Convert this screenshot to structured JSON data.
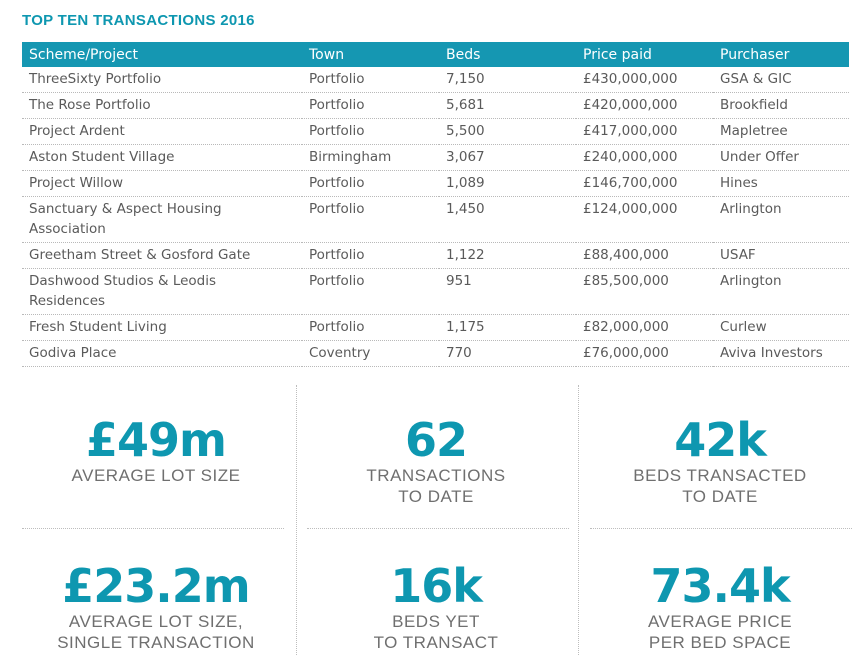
{
  "title": "TOP TEN TRANSACTIONS 2016",
  "table": {
    "headers": [
      "Scheme/Project",
      "Town",
      "Beds",
      "Price paid",
      "Purchaser"
    ],
    "rows": [
      [
        "ThreeSixty Portfolio",
        "Portfolio",
        "7,150",
        "£430,000,000",
        "GSA & GIC"
      ],
      [
        "The Rose Portfolio",
        "Portfolio",
        "5,681",
        "£420,000,000",
        "Brookfield"
      ],
      [
        "Project Ardent",
        "Portfolio",
        "5,500",
        "£417,000,000",
        "Mapletree"
      ],
      [
        "Aston Student Village",
        "Birmingham",
        "3,067",
        "£240,000,000",
        "Under Offer"
      ],
      [
        "Project Willow",
        "Portfolio",
        "1,089",
        "£146,700,000",
        "Hines"
      ],
      [
        "Sanctuary & Aspect Housing Association",
        "Portfolio",
        "1,450",
        "£124,000,000",
        "Arlington"
      ],
      [
        "Greetham Street & Gosford Gate",
        "Portfolio",
        "1,122",
        "£88,400,000",
        "USAF"
      ],
      [
        "Dashwood Studios & Leodis Residences",
        "Portfolio",
        "951",
        "£85,500,000",
        "Arlington"
      ],
      [
        "Fresh Student Living",
        "Portfolio",
        "1,175",
        "£82,000,000",
        "Curlew"
      ],
      [
        "Godiva Place",
        "Coventry",
        "770",
        "£76,000,000",
        "Aviva Investors"
      ]
    ]
  },
  "stats": [
    {
      "value": "£49m",
      "label": "AVERAGE LOT SIZE"
    },
    {
      "value": "62",
      "label": "TRANSACTIONS\nTO DATE"
    },
    {
      "value": "42k",
      "label": "BEDS TRANSACTED\nTO DATE"
    },
    {
      "value": "£23.2m",
      "label": "AVERAGE LOT SIZE,\nSINGLE TRANSACTION"
    },
    {
      "value": "16k",
      "label": "BEDS YET\nTO TRANSACT"
    },
    {
      "value": "73.4k",
      "label": "AVERAGE PRICE\nPER BED SPACE"
    }
  ],
  "colors": {
    "accent": "#0e97b0",
    "header_bg": "#1597b2",
    "text": "#5a5a5a"
  }
}
